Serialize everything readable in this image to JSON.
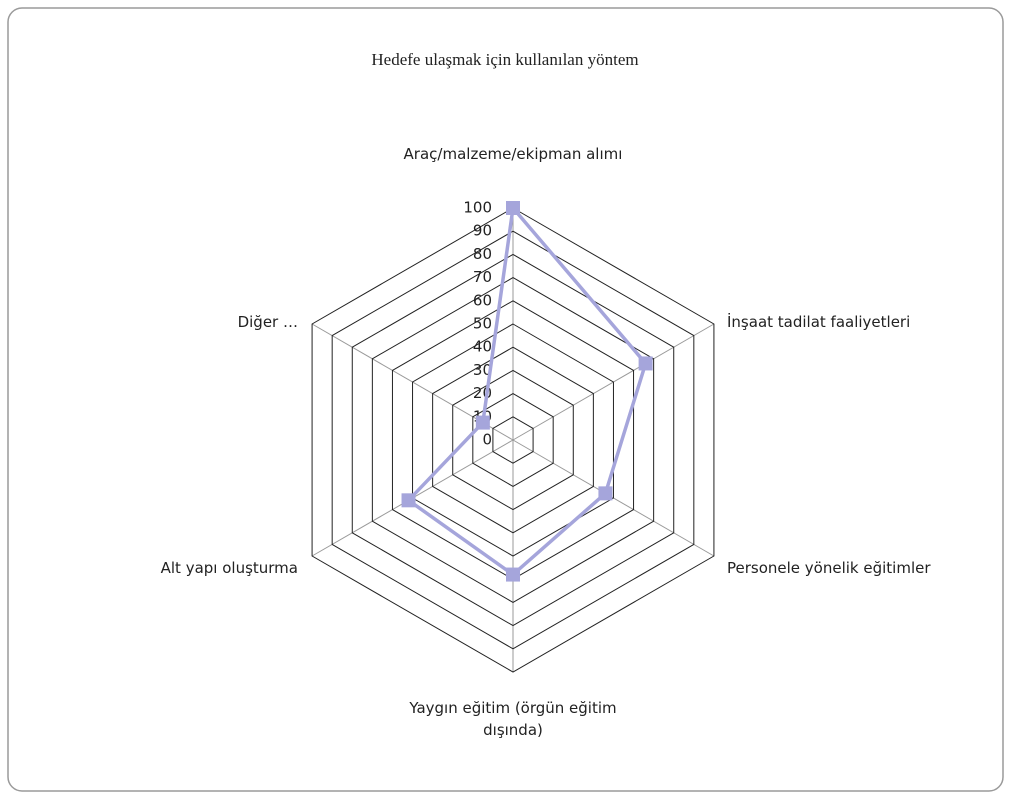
{
  "chart_data": {
    "type": "radar",
    "title": "Hedefe ulaşmak için kullanılan yöntem",
    "categories": [
      "Araç/malzeme/ekipman alımı",
      "İnşaat tadilat faaliyetleri",
      "Personele yönelik eğitimler",
      "Yaygın eğitim (örgün eğitim dışında)",
      "Alt yapı oluşturma",
      "Diğer …"
    ],
    "values": [
      100,
      66,
      46,
      58,
      52,
      15
    ],
    "color": "#a5a5db",
    "rlim": [
      0,
      100
    ],
    "rticks": [
      0,
      10,
      20,
      30,
      40,
      50,
      60,
      70,
      80,
      90,
      100
    ]
  }
}
